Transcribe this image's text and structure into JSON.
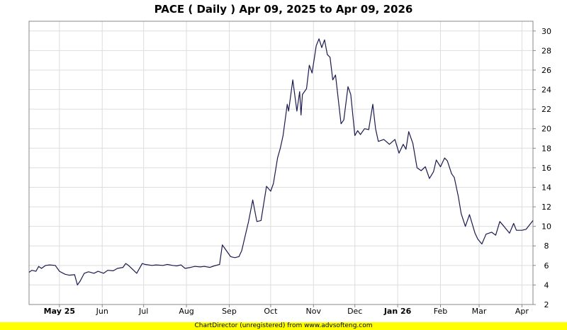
{
  "chart_data": {
    "type": "line",
    "title": "PACE ( Daily ) Apr 09, 2025 to Apr 09, 2026",
    "xlabel": "",
    "ylabel": "",
    "x_start": "2025-04-09",
    "x_end": "2026-04-09",
    "ylim": [
      2,
      31
    ],
    "y_ticks": [
      2,
      4,
      6,
      8,
      10,
      12,
      14,
      16,
      18,
      20,
      22,
      24,
      26,
      28,
      30
    ],
    "x_ticks": [
      {
        "label": "May 25",
        "date": "2025-05-01",
        "bold": true
      },
      {
        "label": "Jun",
        "date": "2025-06-01",
        "bold": false
      },
      {
        "label": "Jul",
        "date": "2025-07-01",
        "bold": false
      },
      {
        "label": "Aug",
        "date": "2025-08-01",
        "bold": false
      },
      {
        "label": "Sep",
        "date": "2025-09-01",
        "bold": false
      },
      {
        "label": "Oct",
        "date": "2025-10-01",
        "bold": false
      },
      {
        "label": "Nov",
        "date": "2025-11-01",
        "bold": false
      },
      {
        "label": "Dec",
        "date": "2025-12-01",
        "bold": false
      },
      {
        "label": "Jan 26",
        "date": "2026-01-01",
        "bold": true
      },
      {
        "label": "Feb",
        "date": "2026-02-01",
        "bold": false
      },
      {
        "label": "Mar",
        "date": "2026-03-01",
        "bold": false
      },
      {
        "label": "Apr",
        "date": "2026-04-01",
        "bold": false
      }
    ],
    "grid": true,
    "y_axis_side": "right",
    "line_color": "#1a1a50",
    "series": [
      {
        "points": [
          [
            "2025-04-09",
            5.3
          ],
          [
            "2025-04-11",
            5.5
          ],
          [
            "2025-04-14",
            5.4
          ],
          [
            "2025-04-16",
            5.9
          ],
          [
            "2025-04-18",
            5.7
          ],
          [
            "2025-04-21",
            6.0
          ],
          [
            "2025-04-24",
            6.05
          ],
          [
            "2025-04-28",
            6.0
          ],
          [
            "2025-05-01",
            5.4
          ],
          [
            "2025-05-05",
            5.1
          ],
          [
            "2025-05-08",
            5.0
          ],
          [
            "2025-05-12",
            5.05
          ],
          [
            "2025-05-14",
            4.0
          ],
          [
            "2025-05-16",
            4.4
          ],
          [
            "2025-05-19",
            5.2
          ],
          [
            "2025-05-22",
            5.35
          ],
          [
            "2025-05-26",
            5.2
          ],
          [
            "2025-05-29",
            5.4
          ],
          [
            "2025-06-02",
            5.2
          ],
          [
            "2025-06-05",
            5.5
          ],
          [
            "2025-06-09",
            5.45
          ],
          [
            "2025-06-12",
            5.7
          ],
          [
            "2025-06-16",
            5.8
          ],
          [
            "2025-06-18",
            6.2
          ],
          [
            "2025-06-20",
            6.0
          ],
          [
            "2025-06-23",
            5.6
          ],
          [
            "2025-06-26",
            5.2
          ],
          [
            "2025-06-30",
            6.2
          ],
          [
            "2025-07-02",
            6.1
          ],
          [
            "2025-07-07",
            6.0
          ],
          [
            "2025-07-10",
            6.05
          ],
          [
            "2025-07-15",
            6.0
          ],
          [
            "2025-07-18",
            6.1
          ],
          [
            "2025-07-22",
            6.0
          ],
          [
            "2025-07-25",
            5.95
          ],
          [
            "2025-07-28",
            6.05
          ],
          [
            "2025-07-31",
            5.7
          ],
          [
            "2025-08-04",
            5.8
          ],
          [
            "2025-08-07",
            5.9
          ],
          [
            "2025-08-11",
            5.85
          ],
          [
            "2025-08-14",
            5.9
          ],
          [
            "2025-08-18",
            5.8
          ],
          [
            "2025-08-21",
            5.95
          ],
          [
            "2025-08-25",
            6.1
          ],
          [
            "2025-08-27",
            8.1
          ],
          [
            "2025-08-29",
            7.7
          ],
          [
            "2025-09-02",
            6.9
          ],
          [
            "2025-09-05",
            6.8
          ],
          [
            "2025-09-08",
            6.9
          ],
          [
            "2025-09-10",
            7.5
          ],
          [
            "2025-09-15",
            10.5
          ],
          [
            "2025-09-18",
            12.7
          ],
          [
            "2025-09-21",
            10.5
          ],
          [
            "2025-09-24",
            10.6
          ],
          [
            "2025-09-28",
            14.1
          ],
          [
            "2025-10-01",
            13.6
          ],
          [
            "2025-10-03",
            14.4
          ],
          [
            "2025-10-06",
            17.0
          ],
          [
            "2025-10-08",
            18.0
          ],
          [
            "2025-10-10",
            19.3
          ],
          [
            "2025-10-13",
            22.5
          ],
          [
            "2025-10-14",
            21.8
          ],
          [
            "2025-10-17",
            25.0
          ],
          [
            "2025-10-20",
            21.8
          ],
          [
            "2025-10-22",
            23.8
          ],
          [
            "2025-10-23",
            21.4
          ],
          [
            "2025-10-24",
            23.5
          ],
          [
            "2025-10-27",
            24.1
          ],
          [
            "2025-10-29",
            26.5
          ],
          [
            "2025-10-31",
            25.7
          ],
          [
            "2025-11-03",
            28.5
          ],
          [
            "2025-11-05",
            29.2
          ],
          [
            "2025-11-07",
            28.3
          ],
          [
            "2025-11-09",
            29.1
          ],
          [
            "2025-11-11",
            27.6
          ],
          [
            "2025-11-13",
            27.3
          ],
          [
            "2025-11-15",
            25.0
          ],
          [
            "2025-11-17",
            25.5
          ],
          [
            "2025-11-21",
            20.5
          ],
          [
            "2025-11-23",
            20.9
          ],
          [
            "2025-11-26",
            24.3
          ],
          [
            "2025-11-28",
            23.5
          ],
          [
            "2025-12-01",
            19.3
          ],
          [
            "2025-12-03",
            19.8
          ],
          [
            "2025-12-05",
            19.4
          ],
          [
            "2025-12-08",
            20.0
          ],
          [
            "2025-12-11",
            19.9
          ],
          [
            "2025-12-14",
            22.5
          ],
          [
            "2025-12-16",
            20.0
          ],
          [
            "2025-12-18",
            18.7
          ],
          [
            "2025-12-22",
            18.9
          ],
          [
            "2025-12-26",
            18.4
          ],
          [
            "2025-12-30",
            18.9
          ],
          [
            "2026-01-02",
            17.5
          ],
          [
            "2026-01-05",
            18.4
          ],
          [
            "2026-01-07",
            17.9
          ],
          [
            "2026-01-09",
            19.7
          ],
          [
            "2026-01-12",
            18.5
          ],
          [
            "2026-01-15",
            16.0
          ],
          [
            "2026-01-18",
            15.7
          ],
          [
            "2026-01-21",
            16.1
          ],
          [
            "2026-01-24",
            14.9
          ],
          [
            "2026-01-27",
            15.6
          ],
          [
            "2026-01-29",
            16.8
          ],
          [
            "2026-02-01",
            16.1
          ],
          [
            "2026-02-04",
            17.0
          ],
          [
            "2026-02-06",
            16.7
          ],
          [
            "2026-02-09",
            15.4
          ],
          [
            "2026-02-11",
            15.0
          ],
          [
            "2026-02-14",
            13.0
          ],
          [
            "2026-02-16",
            11.3
          ],
          [
            "2026-02-19",
            10.0
          ],
          [
            "2026-02-22",
            11.2
          ],
          [
            "2026-02-26",
            9.3
          ],
          [
            "2026-02-28",
            8.7
          ],
          [
            "2026-03-03",
            8.2
          ],
          [
            "2026-03-06",
            9.2
          ],
          [
            "2026-03-10",
            9.4
          ],
          [
            "2026-03-13",
            9.1
          ],
          [
            "2026-03-16",
            10.5
          ],
          [
            "2026-03-19",
            10.0
          ],
          [
            "2026-03-23",
            9.3
          ],
          [
            "2026-03-26",
            10.3
          ],
          [
            "2026-03-28",
            9.6
          ],
          [
            "2026-04-01",
            9.6
          ],
          [
            "2026-04-04",
            9.7
          ],
          [
            "2026-04-09",
            10.6
          ]
        ]
      }
    ]
  },
  "footer": "ChartDirector (unregistered) from www.advsofteng.com"
}
